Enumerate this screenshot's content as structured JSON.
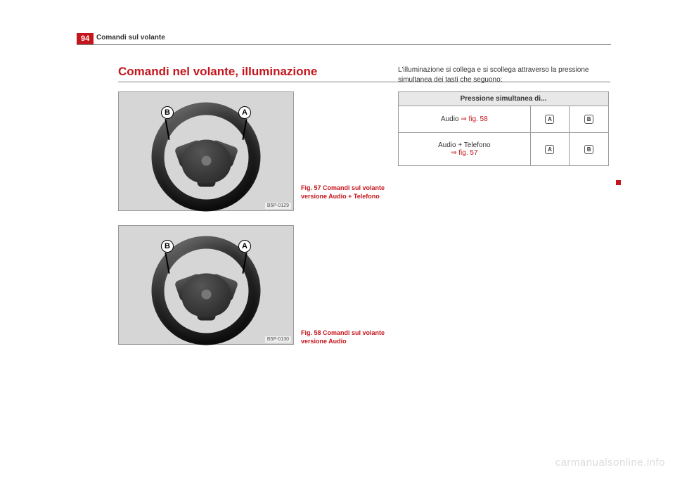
{
  "page_number": "94",
  "running_head": "Comandi sul volante",
  "section_title": "Comandi nel volante, illuminazione",
  "figures": {
    "fig1": {
      "code": "B5P-0129",
      "label_left": "B",
      "label_right": "A"
    },
    "fig2": {
      "code": "B5P-0130",
      "label_left": "B",
      "label_right": "A"
    }
  },
  "captions": {
    "cap1": "Fig. 57   Comandi sul volante versione Audio + Telefono",
    "cap2": "Fig. 58   Comandi sul volante versione Audio"
  },
  "right_para": "L'illuminazione si collega e si scollega attraverso la pressione simultanea dei tasti che seguono:",
  "table": {
    "header": "Pressione simultanea di...",
    "rows": [
      {
        "label_plain": "Audio ",
        "label_ref": "⇒ fig. 58",
        "keyA": "A",
        "keyB": "B"
      },
      {
        "label_plain": "Audio + Telefono",
        "label_ref": "⇒ fig. 57",
        "keyA": "A",
        "keyB": "B"
      }
    ]
  },
  "watermark": "carmanualsonline.info",
  "colors": {
    "accent": "#c4161c",
    "rule": "#808080",
    "fig_bg": "#d6d6d6",
    "th_bg": "#e8e8e8",
    "watermark": "#dddddd"
  }
}
